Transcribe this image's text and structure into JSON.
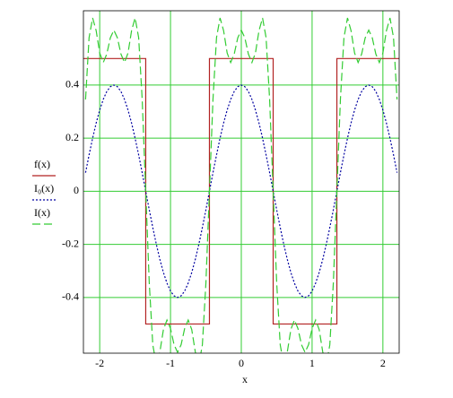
{
  "chart_data": {
    "type": "line",
    "x_label": "x",
    "x": [
      -2.2,
      -2.15,
      -2.1,
      -2.05,
      -2.0,
      -1.95,
      -1.9,
      -1.85,
      -1.8,
      -1.75,
      -1.7,
      -1.65,
      -1.6,
      -1.55,
      -1.5,
      -1.45,
      -1.4,
      -1.35,
      -1.3,
      -1.25,
      -1.2,
      -1.15,
      -1.1,
      -1.05,
      -1.0,
      -0.95,
      -0.9,
      -0.85,
      -0.8,
      -0.75,
      -0.7,
      -0.65,
      -0.6,
      -0.55,
      -0.5,
      -0.45,
      -0.4,
      -0.35,
      -0.3,
      -0.25,
      -0.2,
      -0.15,
      -0.1,
      -0.05,
      0,
      0.05,
      0.1,
      0.15,
      0.2,
      0.25,
      0.3,
      0.35,
      0.4,
      0.45,
      0.5,
      0.55,
      0.6,
      0.65,
      0.7,
      0.75,
      0.8,
      0.85,
      0.9,
      0.95,
      1.0,
      1.05,
      1.1,
      1.15,
      1.2,
      1.25,
      1.3,
      1.35,
      1.4,
      1.45,
      1.5,
      1.55,
      1.6,
      1.65,
      1.7,
      1.75,
      1.8,
      1.85,
      1.9,
      1.95,
      2.0,
      2.05,
      2.1,
      2.15,
      2.2
    ],
    "series": [
      {
        "name": "f(x)",
        "color": "#b22222",
        "dash": "none",
        "x": [
          -2.25,
          -1.35,
          -1.35,
          -0.45,
          -0.45,
          0.45,
          0.45,
          1.35,
          1.35,
          2.25
        ],
        "values": [
          0.5,
          0.5,
          -0.5,
          -0.5,
          0.5,
          0.5,
          -0.5,
          -0.5,
          0.5,
          0.5
        ]
      },
      {
        "name": "I₀(x)",
        "color": "#0000a0",
        "dash": "2,2",
        "values": [
          0.07,
          0.137,
          0.2,
          0.257,
          0.306,
          0.346,
          0.376,
          0.394,
          0.4,
          0.394,
          0.376,
          0.346,
          0.306,
          0.257,
          0.2,
          0.137,
          0.07,
          0,
          -0.07,
          -0.137,
          -0.2,
          -0.257,
          -0.306,
          -0.346,
          -0.376,
          -0.394,
          -0.4,
          -0.394,
          -0.376,
          -0.346,
          -0.306,
          -0.257,
          -0.2,
          -0.137,
          -0.07,
          0,
          0.07,
          0.137,
          0.2,
          0.257,
          0.306,
          0.346,
          0.376,
          0.394,
          0.4,
          0.394,
          0.376,
          0.346,
          0.306,
          0.257,
          0.2,
          0.137,
          0.07,
          0,
          -0.07,
          -0.137,
          -0.2,
          -0.257,
          -0.306,
          -0.346,
          -0.376,
          -0.394,
          -0.4,
          -0.394,
          -0.376,
          -0.346,
          -0.306,
          -0.257,
          -0.2,
          -0.137,
          -0.07,
          0,
          0.07,
          0.137,
          0.2,
          0.257,
          0.306,
          0.346,
          0.376,
          0.394,
          0.4,
          0.394,
          0.376,
          0.346,
          0.306,
          0.257,
          0.2,
          0.137,
          0.07
        ]
      },
      {
        "name": "I(x)",
        "color": "#33cc33",
        "dash": "9,4",
        "values": [
          0.346,
          0.579,
          0.653,
          0.605,
          0.521,
          0.485,
          0.517,
          0.578,
          0.607,
          0.578,
          0.517,
          0.485,
          0.521,
          0.605,
          0.653,
          0.579,
          0.346,
          0,
          -0.346,
          -0.579,
          -0.653,
          -0.605,
          -0.521,
          -0.485,
          -0.517,
          -0.578,
          -0.607,
          -0.578,
          -0.517,
          -0.485,
          -0.521,
          -0.605,
          -0.653,
          -0.579,
          -0.346,
          0,
          0.346,
          0.579,
          0.653,
          0.605,
          0.521,
          0.485,
          0.517,
          0.578,
          0.607,
          0.578,
          0.517,
          0.485,
          0.521,
          0.605,
          0.653,
          0.579,
          0.346,
          0,
          -0.346,
          -0.579,
          -0.653,
          -0.605,
          -0.521,
          -0.485,
          -0.517,
          -0.578,
          -0.607,
          -0.578,
          -0.517,
          -0.485,
          -0.521,
          -0.605,
          -0.653,
          -0.579,
          -0.346,
          0,
          0.346,
          0.579,
          0.653,
          0.605,
          0.521,
          0.485,
          0.517,
          0.578,
          0.607,
          0.578,
          0.517,
          0.485,
          0.521,
          0.605,
          0.653,
          0.579,
          0.346
        ]
      }
    ],
    "xlim": [
      -2.23,
      2.23
    ],
    "xticks": [
      -2,
      -1,
      0,
      1,
      2
    ],
    "ylim": [
      -0.61,
      0.68
    ],
    "yticks": [
      -0.4,
      -0.2,
      0,
      0.2,
      0.4
    ],
    "grid": true,
    "grid_color": "#33cc33",
    "legend": "left"
  }
}
